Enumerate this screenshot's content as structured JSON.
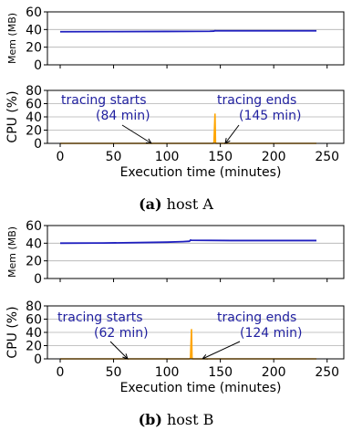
{
  "chart_data": [
    {
      "type": "line",
      "caption_label": "(a)",
      "caption_text": "host A",
      "xlabel": "Execution time (minutes)",
      "xlim": [
        0,
        240
      ],
      "xticks": [
        0,
        50,
        100,
        150,
        200,
        250
      ],
      "mem": {
        "ylabel": "Mem (MB)",
        "ylim": [
          0,
          60
        ],
        "yticks": [
          0,
          20,
          40,
          60
        ],
        "color": "#1f1fbf",
        "x": [
          0,
          50,
          100,
          140,
          144,
          145,
          146,
          200,
          240
        ],
        "y": [
          37.5,
          37.6,
          37.8,
          38,
          38.2,
          38.6,
          38.5,
          38.5,
          38.5
        ]
      },
      "cpu": {
        "ylabel": "CPU (%)",
        "ylim": [
          0,
          80
        ],
        "yticks": [
          0,
          20,
          40,
          60,
          80
        ],
        "color": "#ffa500",
        "x": [
          0,
          143,
          144,
          145,
          145.5,
          146,
          240
        ],
        "y": [
          0,
          0,
          1,
          45,
          1,
          0,
          0
        ]
      },
      "annotations": [
        {
          "text_line1": "tracing starts",
          "text_line2": "(84 min)",
          "x": 84
        },
        {
          "text_line1": "tracing ends",
          "text_line2": "(145 min)",
          "x": 145
        }
      ]
    },
    {
      "type": "line",
      "caption_label": "(b)",
      "caption_text": "host B",
      "xlabel": "Execution time (minutes)",
      "xlim": [
        0,
        240
      ],
      "xticks": [
        0,
        50,
        100,
        150,
        200,
        250
      ],
      "mem": {
        "ylabel": "Mem (MB)",
        "ylim": [
          0,
          60
        ],
        "yticks": [
          0,
          20,
          40,
          60
        ],
        "color": "#1f1fbf",
        "x": [
          0,
          40,
          80,
          100,
          115,
          121,
          122,
          123,
          160,
          200,
          240
        ],
        "y": [
          40,
          40.2,
          40.8,
          41.2,
          41.8,
          42.2,
          43.5,
          43.3,
          43,
          43,
          43
        ]
      },
      "cpu": {
        "ylabel": "CPU (%)",
        "ylim": [
          0,
          80
        ],
        "yticks": [
          0,
          20,
          40,
          60,
          80
        ],
        "color": "#ffa500",
        "x": [
          0,
          121,
          122,
          123,
          123.5,
          124,
          240
        ],
        "y": [
          0,
          0,
          1,
          45,
          1,
          0,
          0
        ]
      },
      "annotations": [
        {
          "text_line1": "tracing starts",
          "text_line2": "(62 min)",
          "x": 62
        },
        {
          "text_line1": "tracing ends",
          "text_line2": "(124 min)",
          "x": 124
        }
      ]
    }
  ]
}
